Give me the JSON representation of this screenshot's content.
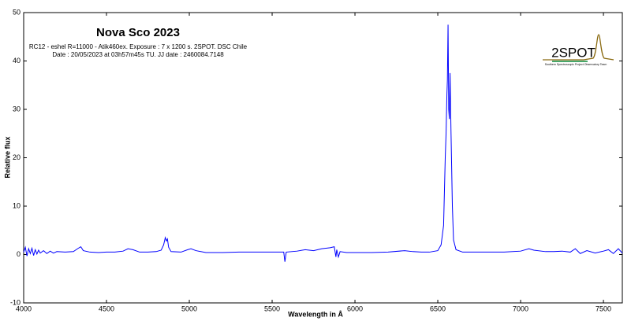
{
  "chart_data": {
    "type": "line",
    "title": "Nova Sco 2023",
    "subtitle": [
      "RC12 - eshel R=11000 - Atik460ex. Exposure : 7 x 1200 s. 2SPOT. DSC Chile",
      "Date : 20/05/2023 at 03h57m45s TU. JJ date : 2460084.7148"
    ],
    "logo": "2SPOT",
    "logo_caption": "Southern Spectroscopic Project Observatory Team",
    "xlabel": "Wavelength in Å",
    "ylabel": "Relative flux",
    "xlim": [
      4000,
      7614
    ],
    "ylim": [
      -10,
      50
    ],
    "xticks": [
      4000,
      4500,
      5000,
      5500,
      6000,
      6500,
      7000,
      7500
    ],
    "yticks": [
      -10,
      0,
      10,
      20,
      30,
      40,
      50
    ],
    "color": "#0000ff",
    "x": [
      4000,
      4010,
      4020,
      4030,
      4040,
      4050,
      4060,
      4070,
      4080,
      4090,
      4100,
      4120,
      4140,
      4160,
      4180,
      4200,
      4250,
      4300,
      4330,
      4345,
      4360,
      4400,
      4450,
      4500,
      4550,
      4600,
      4630,
      4660,
      4700,
      4750,
      4800,
      4830,
      4845,
      4855,
      4862,
      4868,
      4875,
      4890,
      4950,
      4990,
      5010,
      5040,
      5100,
      5200,
      5300,
      5400,
      5500,
      5570,
      5577,
      5585,
      5650,
      5700,
      5750,
      5800,
      5850,
      5875,
      5885,
      5890,
      5900,
      5910,
      5950,
      6000,
      6100,
      6200,
      6300,
      6350,
      6400,
      6450,
      6500,
      6520,
      6535,
      6545,
      6550,
      6555,
      6558,
      6562,
      6566,
      6570,
      6574,
      6580,
      6588,
      6595,
      6610,
      6650,
      6700,
      6800,
      6900,
      7000,
      7050,
      7080,
      7150,
      7200,
      7250,
      7300,
      7330,
      7360,
      7400,
      7450,
      7500,
      7530,
      7560,
      7590,
      7614
    ],
    "values": [
      0.5,
      1.5,
      -0.3,
      1.2,
      0.2,
      1.3,
      -0.2,
      1.0,
      0.1,
      0.9,
      0.3,
      0.8,
      0.2,
      0.7,
      0.3,
      0.6,
      0.5,
      0.6,
      1.3,
      1.6,
      0.8,
      0.5,
      0.4,
      0.5,
      0.5,
      0.7,
      1.2,
      1.0,
      0.5,
      0.5,
      0.6,
      0.9,
      2.0,
      3.5,
      2.8,
      3.2,
      1.5,
      0.6,
      0.5,
      1.0,
      1.2,
      0.8,
      0.4,
      0.4,
      0.5,
      0.5,
      0.5,
      0.5,
      -1.5,
      0.5,
      0.7,
      1.0,
      0.8,
      1.2,
      1.4,
      1.6,
      -0.5,
      1.0,
      -0.5,
      0.6,
      0.4,
      0.4,
      0.4,
      0.5,
      0.8,
      0.6,
      0.5,
      0.5,
      0.8,
      2.0,
      6,
      20,
      25,
      33,
      36,
      47.5,
      30,
      28,
      37.5,
      25,
      10,
      3,
      1.0,
      0.5,
      0.5,
      0.5,
      0.5,
      0.7,
      1.2,
      0.9,
      0.6,
      0.6,
      0.7,
      0.5,
      1.2,
      0.2,
      0.8,
      0.3,
      0.7,
      1.0,
      0.2,
      1.2,
      0.3
    ]
  }
}
